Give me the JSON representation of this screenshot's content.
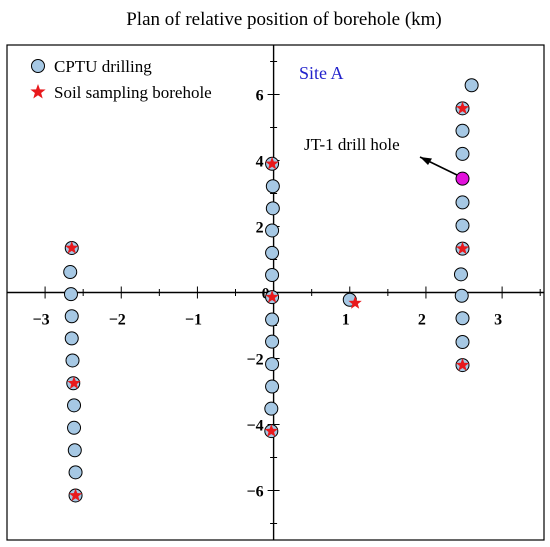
{
  "chart_data": {
    "type": "scatter",
    "title": "Plan of relative position of borehole (km)",
    "xlabel": "",
    "ylabel": "",
    "xlim": [
      -3.5,
      3.55
    ],
    "ylim": [
      -7.5,
      7.5
    ],
    "x_ticks": [
      -3,
      -2,
      -1,
      0,
      1,
      2,
      3
    ],
    "y_ticks": [
      -6,
      -4,
      -2,
      0,
      2,
      4,
      6
    ],
    "x_tick_labels": [
      "−3",
      "−2",
      "−1",
      "0",
      "1",
      "2",
      "3"
    ],
    "y_tick_labels": [
      "−6",
      "−4",
      "−2",
      "0",
      "2",
      "4",
      "6"
    ],
    "grid": false,
    "legend": {
      "placement": "top-left",
      "entries": [
        "CPTU drilling",
        "Soil sampling borehole"
      ]
    },
    "series": [
      {
        "name": "CPTU drilling",
        "marker": "circle",
        "color": "#a6c8e4",
        "points": [
          {
            "x": -2.65,
            "y": 1.35
          },
          {
            "x": -2.67,
            "y": 0.62
          },
          {
            "x": -2.66,
            "y": -0.05
          },
          {
            "x": -2.65,
            "y": -0.72
          },
          {
            "x": -2.65,
            "y": -1.39
          },
          {
            "x": -2.64,
            "y": -2.06
          },
          {
            "x": -2.63,
            "y": -2.75
          },
          {
            "x": -2.62,
            "y": -3.42
          },
          {
            "x": -2.62,
            "y": -4.1
          },
          {
            "x": -2.61,
            "y": -4.78
          },
          {
            "x": -2.6,
            "y": -5.45
          },
          {
            "x": -2.6,
            "y": -6.15
          },
          {
            "x": -0.02,
            "y": 3.9
          },
          {
            "x": -0.01,
            "y": 3.22
          },
          {
            "x": -0.01,
            "y": 2.55
          },
          {
            "x": -0.02,
            "y": 1.88
          },
          {
            "x": -0.02,
            "y": 1.2
          },
          {
            "x": -0.02,
            "y": 0.53
          },
          {
            "x": -0.02,
            "y": -0.14
          },
          {
            "x": -0.02,
            "y": -0.82
          },
          {
            "x": -0.02,
            "y": -1.49
          },
          {
            "x": -0.02,
            "y": -2.17
          },
          {
            "x": -0.02,
            "y": -2.85
          },
          {
            "x": -0.03,
            "y": -3.52
          },
          {
            "x": -0.03,
            "y": -4.2
          },
          {
            "x": 1.0,
            "y": -0.22
          },
          {
            "x": 2.48,
            "y": 5.58
          },
          {
            "x": 2.48,
            "y": 4.9
          },
          {
            "x": 2.48,
            "y": 4.2
          },
          {
            "x": 2.48,
            "y": 2.73
          },
          {
            "x": 2.48,
            "y": 2.03
          },
          {
            "x": 2.48,
            "y": 1.33
          },
          {
            "x": 2.46,
            "y": 0.55
          },
          {
            "x": 2.47,
            "y": -0.1
          },
          {
            "x": 2.48,
            "y": -0.78
          },
          {
            "x": 2.48,
            "y": -1.5
          },
          {
            "x": 2.48,
            "y": -2.2
          },
          {
            "x": 2.6,
            "y": 6.28
          }
        ]
      },
      {
        "name": "Soil sampling borehole",
        "marker": "star",
        "color": "#e8191c",
        "points": [
          {
            "x": -2.65,
            "y": 1.35
          },
          {
            "x": -2.62,
            "y": -2.75
          },
          {
            "x": -2.6,
            "y": -6.15
          },
          {
            "x": -0.02,
            "y": 3.9
          },
          {
            "x": -0.02,
            "y": -0.14
          },
          {
            "x": -0.03,
            "y": -4.2
          },
          {
            "x": 1.07,
            "y": -0.32
          },
          {
            "x": 2.48,
            "y": 5.58
          },
          {
            "x": 2.48,
            "y": 1.33
          },
          {
            "x": 2.48,
            "y": -2.2
          }
        ]
      },
      {
        "name": "",
        "marker": "circle",
        "color": "#e312dc",
        "points": [
          {
            "x": 2.48,
            "y": 3.45
          }
        ]
      }
    ],
    "annotations": [
      {
        "text": "Site A",
        "color": "#2222cc"
      },
      {
        "text": "JT-1 drill hole",
        "target": {
          "x": 2.48,
          "y": 3.45
        }
      }
    ]
  }
}
